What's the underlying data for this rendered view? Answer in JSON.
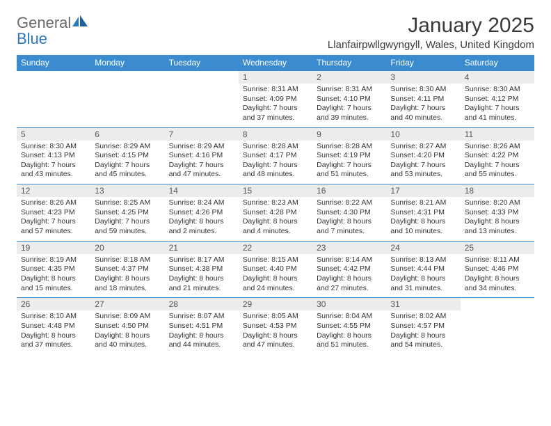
{
  "logo": {
    "word1": "General",
    "word2": "Blue"
  },
  "title": "January 2025",
  "location": "Llanfairpwllgwyngyll, Wales, United Kingdom",
  "colors": {
    "header_bg": "#3a8bd0",
    "header_text": "#ffffff",
    "daynum_bg": "#ececec",
    "logo_gray": "#6a6a6a",
    "logo_blue": "#2b78c2"
  },
  "day_labels": [
    "Sunday",
    "Monday",
    "Tuesday",
    "Wednesday",
    "Thursday",
    "Friday",
    "Saturday"
  ],
  "weeks": [
    [
      {
        "n": "",
        "sunrise": "",
        "sunset": "",
        "day_h": "",
        "day_m": ""
      },
      {
        "n": "",
        "sunrise": "",
        "sunset": "",
        "day_h": "",
        "day_m": ""
      },
      {
        "n": "",
        "sunrise": "",
        "sunset": "",
        "day_h": "",
        "day_m": ""
      },
      {
        "n": "1",
        "sunrise": "8:31 AM",
        "sunset": "4:09 PM",
        "day_h": "7",
        "day_m": "37"
      },
      {
        "n": "2",
        "sunrise": "8:31 AM",
        "sunset": "4:10 PM",
        "day_h": "7",
        "day_m": "39"
      },
      {
        "n": "3",
        "sunrise": "8:30 AM",
        "sunset": "4:11 PM",
        "day_h": "7",
        "day_m": "40"
      },
      {
        "n": "4",
        "sunrise": "8:30 AM",
        "sunset": "4:12 PM",
        "day_h": "7",
        "day_m": "41"
      }
    ],
    [
      {
        "n": "5",
        "sunrise": "8:30 AM",
        "sunset": "4:13 PM",
        "day_h": "7",
        "day_m": "43"
      },
      {
        "n": "6",
        "sunrise": "8:29 AM",
        "sunset": "4:15 PM",
        "day_h": "7",
        "day_m": "45"
      },
      {
        "n": "7",
        "sunrise": "8:29 AM",
        "sunset": "4:16 PM",
        "day_h": "7",
        "day_m": "47"
      },
      {
        "n": "8",
        "sunrise": "8:28 AM",
        "sunset": "4:17 PM",
        "day_h": "7",
        "day_m": "48"
      },
      {
        "n": "9",
        "sunrise": "8:28 AM",
        "sunset": "4:19 PM",
        "day_h": "7",
        "day_m": "51"
      },
      {
        "n": "10",
        "sunrise": "8:27 AM",
        "sunset": "4:20 PM",
        "day_h": "7",
        "day_m": "53"
      },
      {
        "n": "11",
        "sunrise": "8:26 AM",
        "sunset": "4:22 PM",
        "day_h": "7",
        "day_m": "55"
      }
    ],
    [
      {
        "n": "12",
        "sunrise": "8:26 AM",
        "sunset": "4:23 PM",
        "day_h": "7",
        "day_m": "57"
      },
      {
        "n": "13",
        "sunrise": "8:25 AM",
        "sunset": "4:25 PM",
        "day_h": "7",
        "day_m": "59"
      },
      {
        "n": "14",
        "sunrise": "8:24 AM",
        "sunset": "4:26 PM",
        "day_h": "8",
        "day_m": "2"
      },
      {
        "n": "15",
        "sunrise": "8:23 AM",
        "sunset": "4:28 PM",
        "day_h": "8",
        "day_m": "4"
      },
      {
        "n": "16",
        "sunrise": "8:22 AM",
        "sunset": "4:30 PM",
        "day_h": "8",
        "day_m": "7"
      },
      {
        "n": "17",
        "sunrise": "8:21 AM",
        "sunset": "4:31 PM",
        "day_h": "8",
        "day_m": "10"
      },
      {
        "n": "18",
        "sunrise": "8:20 AM",
        "sunset": "4:33 PM",
        "day_h": "8",
        "day_m": "13"
      }
    ],
    [
      {
        "n": "19",
        "sunrise": "8:19 AM",
        "sunset": "4:35 PM",
        "day_h": "8",
        "day_m": "15"
      },
      {
        "n": "20",
        "sunrise": "8:18 AM",
        "sunset": "4:37 PM",
        "day_h": "8",
        "day_m": "18"
      },
      {
        "n": "21",
        "sunrise": "8:17 AM",
        "sunset": "4:38 PM",
        "day_h": "8",
        "day_m": "21"
      },
      {
        "n": "22",
        "sunrise": "8:15 AM",
        "sunset": "4:40 PM",
        "day_h": "8",
        "day_m": "24"
      },
      {
        "n": "23",
        "sunrise": "8:14 AM",
        "sunset": "4:42 PM",
        "day_h": "8",
        "day_m": "27"
      },
      {
        "n": "24",
        "sunrise": "8:13 AM",
        "sunset": "4:44 PM",
        "day_h": "8",
        "day_m": "31"
      },
      {
        "n": "25",
        "sunrise": "8:11 AM",
        "sunset": "4:46 PM",
        "day_h": "8",
        "day_m": "34"
      }
    ],
    [
      {
        "n": "26",
        "sunrise": "8:10 AM",
        "sunset": "4:48 PM",
        "day_h": "8",
        "day_m": "37"
      },
      {
        "n": "27",
        "sunrise": "8:09 AM",
        "sunset": "4:50 PM",
        "day_h": "8",
        "day_m": "40"
      },
      {
        "n": "28",
        "sunrise": "8:07 AM",
        "sunset": "4:51 PM",
        "day_h": "8",
        "day_m": "44"
      },
      {
        "n": "29",
        "sunrise": "8:05 AM",
        "sunset": "4:53 PM",
        "day_h": "8",
        "day_m": "47"
      },
      {
        "n": "30",
        "sunrise": "8:04 AM",
        "sunset": "4:55 PM",
        "day_h": "8",
        "day_m": "51"
      },
      {
        "n": "31",
        "sunrise": "8:02 AM",
        "sunset": "4:57 PM",
        "day_h": "8",
        "day_m": "54"
      },
      {
        "n": "",
        "sunrise": "",
        "sunset": "",
        "day_h": "",
        "day_m": ""
      }
    ]
  ],
  "labels": {
    "sunrise": "Sunrise:",
    "sunset": "Sunset:",
    "daylight1": "Daylight:",
    "hours": "hours",
    "and": "and",
    "minutes": "minutes."
  }
}
